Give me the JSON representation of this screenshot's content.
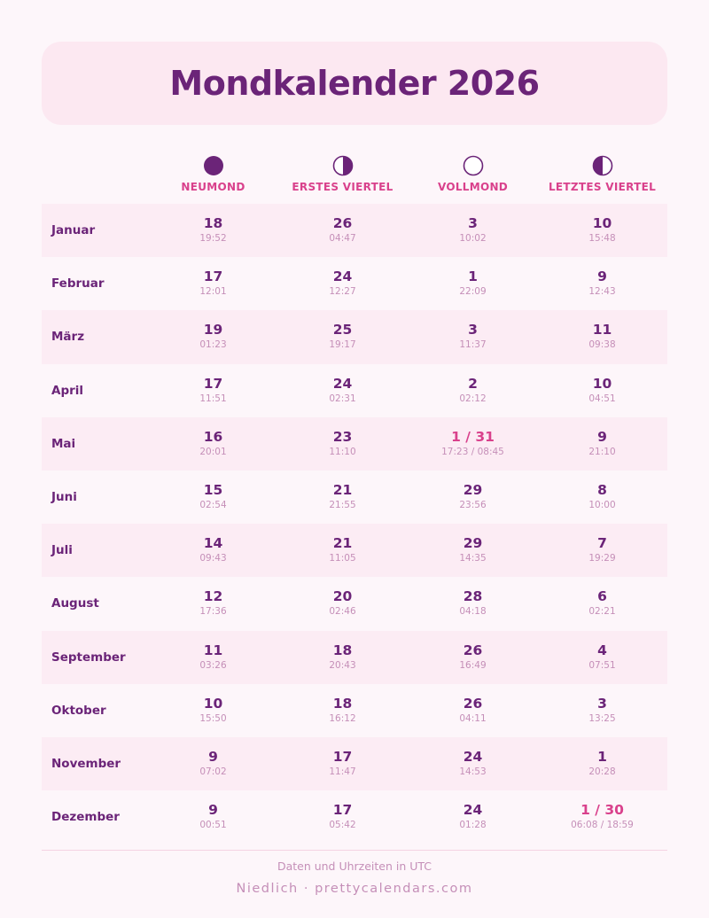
{
  "title": "Mondkalender 2026",
  "colors": {
    "primary": "#6b2478",
    "accent": "#d9418c",
    "muted": "#c58fb8",
    "band": "#fcecf4",
    "background": "#fdf6fa"
  },
  "phases": [
    {
      "label": "NEUMOND",
      "icon": "new-moon-icon"
    },
    {
      "label": "ERSTES VIERTEL",
      "icon": "first-quarter-moon-icon"
    },
    {
      "label": "VOLLMOND",
      "icon": "full-moon-icon"
    },
    {
      "label": "LETZTES VIERTEL",
      "icon": "last-quarter-moon-icon"
    }
  ],
  "months": [
    {
      "name": "Januar",
      "cells": [
        {
          "day": "18",
          "time": "19:52"
        },
        {
          "day": "26",
          "time": "04:47"
        },
        {
          "day": "3",
          "time": "10:02"
        },
        {
          "day": "10",
          "time": "15:48"
        }
      ]
    },
    {
      "name": "Februar",
      "cells": [
        {
          "day": "17",
          "time": "12:01"
        },
        {
          "day": "24",
          "time": "12:27"
        },
        {
          "day": "1",
          "time": "22:09"
        },
        {
          "day": "9",
          "time": "12:43"
        }
      ]
    },
    {
      "name": "März",
      "cells": [
        {
          "day": "19",
          "time": "01:23"
        },
        {
          "day": "25",
          "time": "19:17"
        },
        {
          "day": "3",
          "time": "11:37"
        },
        {
          "day": "11",
          "time": "09:38"
        }
      ]
    },
    {
      "name": "April",
      "cells": [
        {
          "day": "17",
          "time": "11:51"
        },
        {
          "day": "24",
          "time": "02:31"
        },
        {
          "day": "2",
          "time": "02:12"
        },
        {
          "day": "10",
          "time": "04:51"
        }
      ]
    },
    {
      "name": "Mai",
      "cells": [
        {
          "day": "16",
          "time": "20:01"
        },
        {
          "day": "23",
          "time": "11:10"
        },
        {
          "day": "1 / 31",
          "time": "17:23 / 08:45",
          "highlight": true
        },
        {
          "day": "9",
          "time": "21:10"
        }
      ]
    },
    {
      "name": "Juni",
      "cells": [
        {
          "day": "15",
          "time": "02:54"
        },
        {
          "day": "21",
          "time": "21:55"
        },
        {
          "day": "29",
          "time": "23:56"
        },
        {
          "day": "8",
          "time": "10:00"
        }
      ]
    },
    {
      "name": "Juli",
      "cells": [
        {
          "day": "14",
          "time": "09:43"
        },
        {
          "day": "21",
          "time": "11:05"
        },
        {
          "day": "29",
          "time": "14:35"
        },
        {
          "day": "7",
          "time": "19:29"
        }
      ]
    },
    {
      "name": "August",
      "cells": [
        {
          "day": "12",
          "time": "17:36"
        },
        {
          "day": "20",
          "time": "02:46"
        },
        {
          "day": "28",
          "time": "04:18"
        },
        {
          "day": "6",
          "time": "02:21"
        }
      ]
    },
    {
      "name": "September",
      "cells": [
        {
          "day": "11",
          "time": "03:26"
        },
        {
          "day": "18",
          "time": "20:43"
        },
        {
          "day": "26",
          "time": "16:49"
        },
        {
          "day": "4",
          "time": "07:51"
        }
      ]
    },
    {
      "name": "Oktober",
      "cells": [
        {
          "day": "10",
          "time": "15:50"
        },
        {
          "day": "18",
          "time": "16:12"
        },
        {
          "day": "26",
          "time": "04:11"
        },
        {
          "day": "3",
          "time": "13:25"
        }
      ]
    },
    {
      "name": "November",
      "cells": [
        {
          "day": "9",
          "time": "07:02"
        },
        {
          "day": "17",
          "time": "11:47"
        },
        {
          "day": "24",
          "time": "14:53"
        },
        {
          "day": "1",
          "time": "20:28"
        }
      ]
    },
    {
      "name": "Dezember",
      "cells": [
        {
          "day": "9",
          "time": "00:51"
        },
        {
          "day": "17",
          "time": "05:42"
        },
        {
          "day": "24",
          "time": "01:28"
        },
        {
          "day": "1 / 30",
          "time": "06:08 / 18:59",
          "highlight": true
        }
      ]
    }
  ],
  "footer": {
    "note": "Daten und Uhrzeiten in UTC",
    "brand": "Niedlich · prettycalendars.com"
  }
}
